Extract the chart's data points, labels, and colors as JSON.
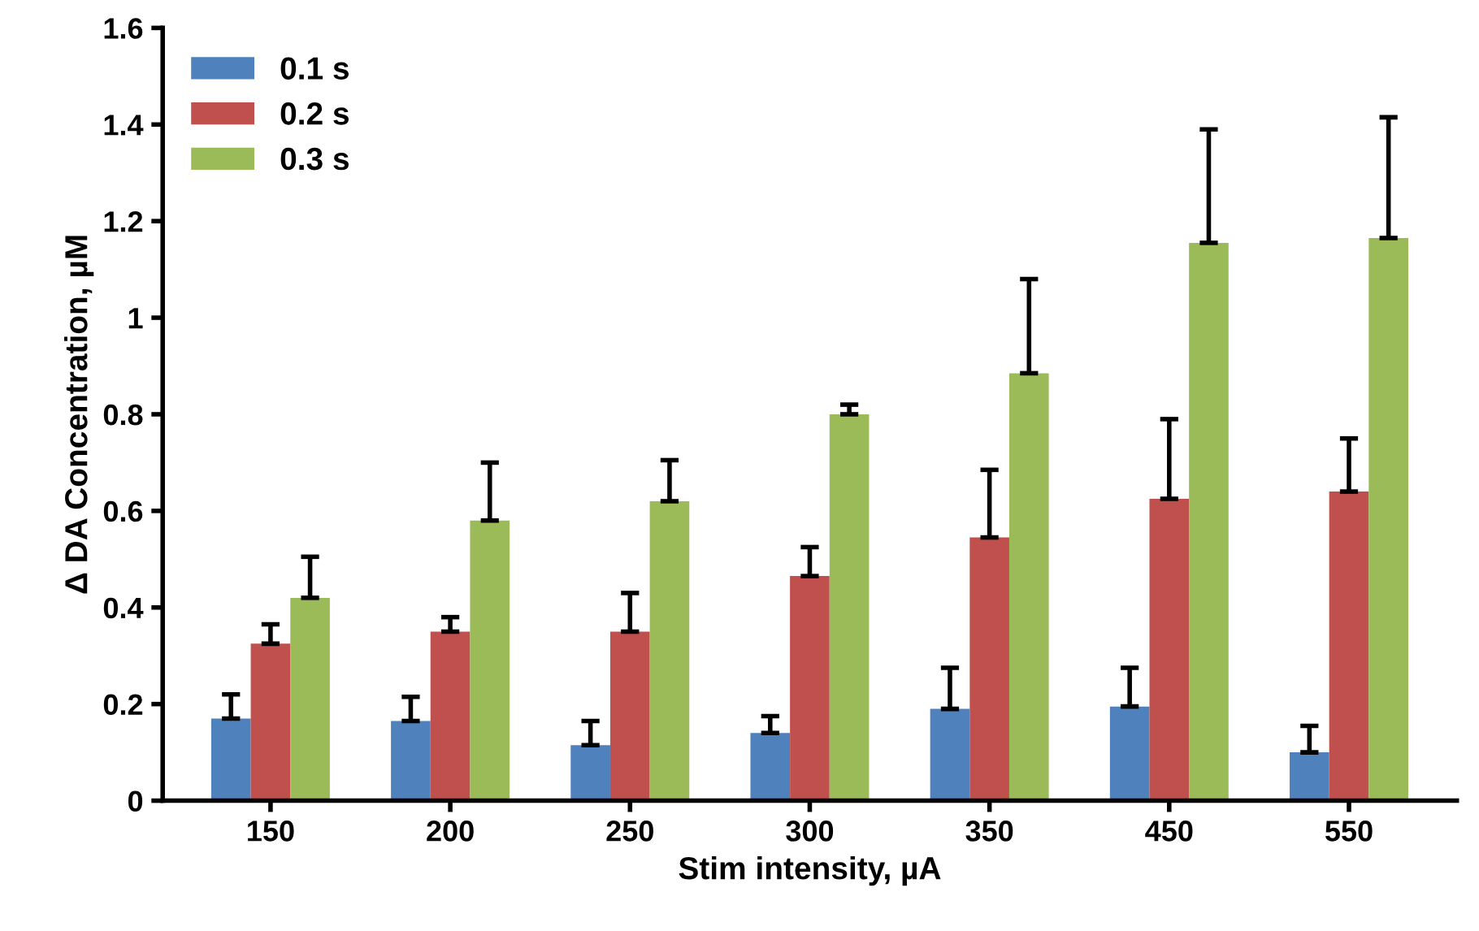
{
  "chart_data": {
    "type": "bar",
    "xlabel": "Stim intensity, µA",
    "ylabel": "Δ DA Concentration, µM",
    "categories": [
      "150",
      "200",
      "250",
      "300",
      "350",
      "450",
      "550"
    ],
    "series": [
      {
        "name": "0.1 s",
        "color": "#4f81bd",
        "values": [
          0.17,
          0.165,
          0.115,
          0.14,
          0.19,
          0.195,
          0.1
        ],
        "errors": [
          [
            0.17,
            0.22
          ],
          [
            0.165,
            0.215
          ],
          [
            0.115,
            0.165
          ],
          [
            0.14,
            0.175
          ],
          [
            0.19,
            0.275
          ],
          [
            0.195,
            0.275
          ],
          [
            0.1,
            0.155
          ]
        ]
      },
      {
        "name": "0.2 s",
        "color": "#c0504d",
        "values": [
          0.325,
          0.35,
          0.35,
          0.465,
          0.545,
          0.625,
          0.64
        ],
        "errors": [
          [
            0.325,
            0.365
          ],
          [
            0.35,
            0.38
          ],
          [
            0.35,
            0.43
          ],
          [
            0.465,
            0.525
          ],
          [
            0.545,
            0.685
          ],
          [
            0.625,
            0.79
          ],
          [
            0.64,
            0.75
          ]
        ]
      },
      {
        "name": "0.3 s",
        "color": "#9bbb59",
        "values": [
          0.42,
          0.58,
          0.62,
          0.8,
          0.885,
          1.155,
          1.165
        ],
        "errors": [
          [
            0.42,
            0.505
          ],
          [
            0.58,
            0.7
          ],
          [
            0.62,
            0.705
          ],
          [
            0.8,
            0.82
          ],
          [
            0.885,
            1.08
          ],
          [
            1.155,
            1.39
          ],
          [
            1.165,
            1.415
          ]
        ]
      }
    ],
    "ylim": [
      0,
      1.6
    ],
    "yticks": [
      0,
      0.2,
      0.4,
      0.6,
      0.8,
      1,
      1.2,
      1.4,
      1.6
    ],
    "grid": false,
    "legend": "top left"
  }
}
